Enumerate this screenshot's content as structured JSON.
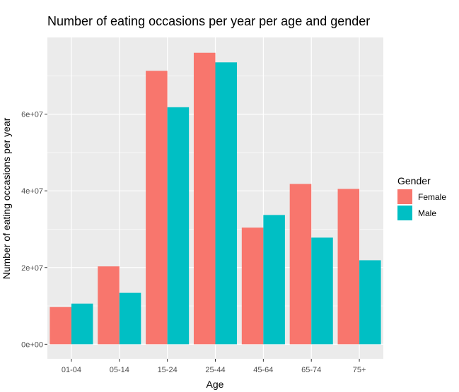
{
  "chart_data": {
    "type": "bar",
    "title": "Number of eating occasions per year per age and gender",
    "xlabel": "Age",
    "ylabel": "Number of eating occasions per year",
    "categories": [
      "01-04",
      "05-14",
      "15-24",
      "25-44",
      "45-64",
      "65-74",
      "75+"
    ],
    "series": [
      {
        "name": "Female",
        "color": "#F8766D",
        "values": [
          9700000,
          20300000,
          71300000,
          76000000,
          30400000,
          41800000,
          40500000
        ]
      },
      {
        "name": "Male",
        "color": "#00BFC4",
        "values": [
          10600000,
          13400000,
          61800000,
          73500000,
          33700000,
          27800000,
          21900000
        ]
      }
    ],
    "yticks": [
      0,
      20000000,
      40000000,
      60000000
    ],
    "ytick_labels": [
      "0e+00",
      "2e+07",
      "4e+07",
      "6e+07"
    ],
    "ylim": [
      -3800000,
      80000000
    ],
    "grid": true,
    "legend": {
      "title": "Gender",
      "position": "right"
    },
    "panel_color": "#EBEBEB",
    "grid_color": "#FFFFFF"
  }
}
